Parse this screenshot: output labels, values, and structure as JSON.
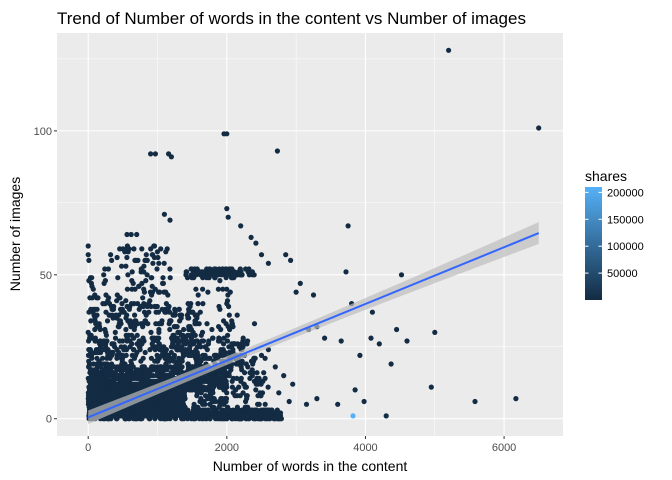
{
  "chart_data": {
    "type": "scatter",
    "title": "Trend of Number of words in the content vs Number of images",
    "xlabel": "Number of words in the content",
    "ylabel": "Number of images",
    "xlim": [
      -450,
      6850
    ],
    "ylim": [
      -6,
      134
    ],
    "x_ticks": [
      0,
      2000,
      4000,
      6000
    ],
    "y_ticks": [
      0,
      50,
      100
    ],
    "x_tick_labels": [
      "0",
      "2000",
      "4000",
      "6000"
    ],
    "y_tick_labels": [
      "0",
      "50",
      "100"
    ],
    "grid": true,
    "legend": {
      "title": "shares",
      "placement": "right",
      "labels": [
        "200000",
        "150000",
        "100000",
        "50000"
      ],
      "values": [
        200000,
        150000,
        100000,
        50000
      ],
      "range": [
        1,
        210000
      ]
    },
    "colors": {
      "low": "#132B43",
      "high": "#56B1F7",
      "trend": "#3366FF",
      "band": "#bdbdbd",
      "panel": "#ebebeb",
      "grid": "#ffffff"
    },
    "trend_line": {
      "x0": 0,
      "y0": 0.5,
      "x1": 6500,
      "y1": 64.5,
      "se_width_start": 1.5,
      "se_width_end": 3.8
    },
    "points": [
      [
        5200,
        128
      ],
      [
        6500,
        101
      ],
      [
        2000,
        99
      ],
      [
        1960,
        99
      ],
      [
        900,
        92
      ],
      [
        970,
        92
      ],
      [
        1160,
        92
      ],
      [
        1200,
        91
      ],
      [
        2730,
        93
      ],
      [
        1100,
        71
      ],
      [
        1180,
        69
      ],
      [
        2000,
        73
      ],
      [
        2020,
        70
      ],
      [
        2200,
        67
      ],
      [
        2350,
        63
      ],
      [
        2420,
        61
      ],
      [
        3750,
        67
      ],
      [
        0,
        60
      ],
      [
        0,
        57
      ],
      [
        10,
        55
      ],
      [
        560,
        64
      ],
      [
        620,
        64
      ],
      [
        700,
        64
      ],
      [
        2500,
        57
      ],
      [
        2600,
        54
      ],
      [
        2850,
        57
      ],
      [
        2920,
        55
      ],
      [
        3720,
        51
      ],
      [
        4520,
        50
      ],
      [
        3060,
        47
      ],
      [
        3000,
        44
      ],
      [
        3250,
        43
      ],
      [
        3800,
        40
      ],
      [
        4100,
        37
      ],
      [
        4450,
        31
      ],
      [
        3180,
        31
      ],
      [
        3300,
        32
      ],
      [
        4600,
        27
      ],
      [
        4200,
        26
      ],
      [
        5000,
        30
      ],
      [
        4080,
        28
      ],
      [
        3650,
        27
      ],
      [
        3410,
        28
      ],
      [
        4370,
        19
      ],
      [
        3920,
        22
      ],
      [
        4950,
        11
      ],
      [
        5580,
        6
      ],
      [
        6170,
        7
      ],
      [
        4300,
        1
      ],
      [
        3600,
        5
      ],
      [
        3850,
        10
      ],
      [
        3980,
        6
      ],
      [
        3300,
        7
      ],
      [
        3150,
        5
      ],
      [
        2500,
        22
      ],
      [
        2700,
        18
      ],
      [
        2820,
        15
      ],
      [
        2950,
        12
      ],
      [
        2600,
        24
      ],
      [
        2400,
        33
      ],
      [
        2300,
        27
      ],
      [
        2150,
        36
      ],
      [
        2050,
        44
      ],
      [
        1900,
        48
      ],
      [
        1750,
        52
      ],
      [
        1650,
        45
      ],
      [
        2250,
        12
      ],
      [
        2450,
        8
      ],
      [
        2650,
        3
      ],
      [
        2900,
        6
      ],
      [
        2350,
        2
      ],
      [
        2750,
        9
      ]
    ],
    "bands": [
      {
        "x_min": 1400,
        "x_max": 2400,
        "y_min": 49,
        "y_max": 52,
        "count": 90
      },
      {
        "x_min": 300,
        "x_max": 1200,
        "y_min": 52,
        "y_max": 60,
        "count": 40
      },
      {
        "x_min": 200,
        "x_max": 1100,
        "y_min": 38,
        "y_max": 52,
        "count": 60
      },
      {
        "x_min": 150,
        "x_max": 1600,
        "y_min": 28,
        "y_max": 40,
        "count": 140
      },
      {
        "x_min": 100,
        "x_max": 2300,
        "y_min": 18,
        "y_max": 28,
        "count": 300
      },
      {
        "x_min": 50,
        "x_max": 2000,
        "y_min": 10,
        "y_max": 18,
        "count": 600
      },
      {
        "x_min": 0,
        "x_max": 1400,
        "y_min": 2,
        "y_max": 12,
        "count": 1400
      },
      {
        "x_min": 0,
        "x_max": 2800,
        "y_min": 0,
        "y_max": 3,
        "count": 600
      },
      {
        "x_min": 0,
        "x_max": 150,
        "y_min": 0,
        "y_max": 50,
        "count": 90
      },
      {
        "x_min": 1500,
        "x_max": 2600,
        "y_min": 0,
        "y_max": 22,
        "count": 180
      },
      {
        "x_min": 1100,
        "x_max": 2100,
        "y_min": 20,
        "y_max": 50,
        "count": 80
      }
    ],
    "highlight_point": {
      "x": 3820,
      "y": 1,
      "shares": 210000
    }
  }
}
